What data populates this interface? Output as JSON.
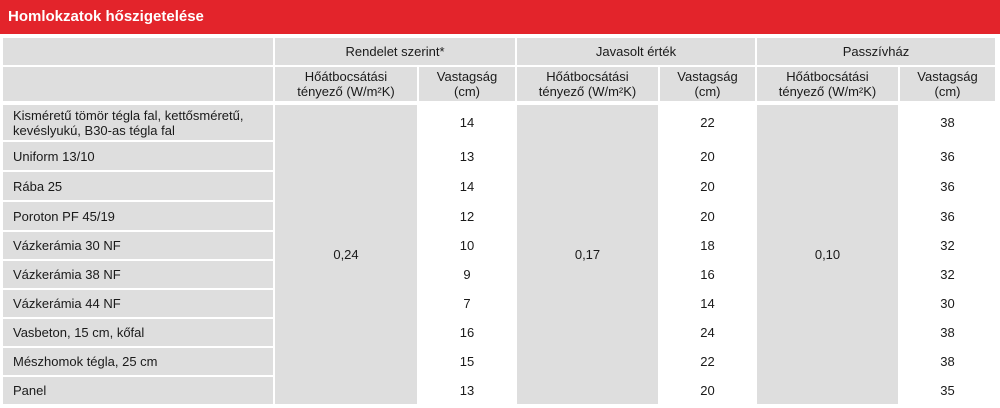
{
  "title": "Homlokzatok hőszigetelése",
  "groups": [
    "Rendelet szerint*",
    "Javasolt érték",
    "Passzívház"
  ],
  "subheaders": {
    "u_line1": "Hőátbocsátási",
    "u_line2": "tényező (W/m²K)",
    "t_line1": "Vastagság",
    "t_line2": "(cm)"
  },
  "u_values": [
    "0,24",
    "0,17",
    "0,10"
  ],
  "rows": [
    {
      "name": "Kisméretű tömör tégla fal, kettősméretű, kevéslyukú, B30-as tégla fal",
      "t": [
        "14",
        "22",
        "38"
      ]
    },
    {
      "name": "Uniform 13/10",
      "t": [
        "13",
        "20",
        "36"
      ]
    },
    {
      "name": "Rába 25",
      "t": [
        "14",
        "20",
        "36"
      ]
    },
    {
      "name": "Poroton PF 45/19",
      "t": [
        "12",
        "20",
        "36"
      ]
    },
    {
      "name": "Vázkerámia 30 NF",
      "t": [
        "10",
        "18",
        "32"
      ]
    },
    {
      "name": "Vázkerámia 38 NF",
      "t": [
        "9",
        "16",
        "32"
      ]
    },
    {
      "name": "Vázkerámia 44 NF",
      "t": [
        "7",
        "14",
        "30"
      ]
    },
    {
      "name": "Vasbeton, 15 cm, kőfal",
      "t": [
        "16",
        "24",
        "38"
      ]
    },
    {
      "name": "Mészhomok tégla, 25 cm",
      "t": [
        "15",
        "22",
        "38"
      ]
    },
    {
      "name": "Panel",
      "t": [
        "13",
        "20",
        "35"
      ]
    }
  ]
}
